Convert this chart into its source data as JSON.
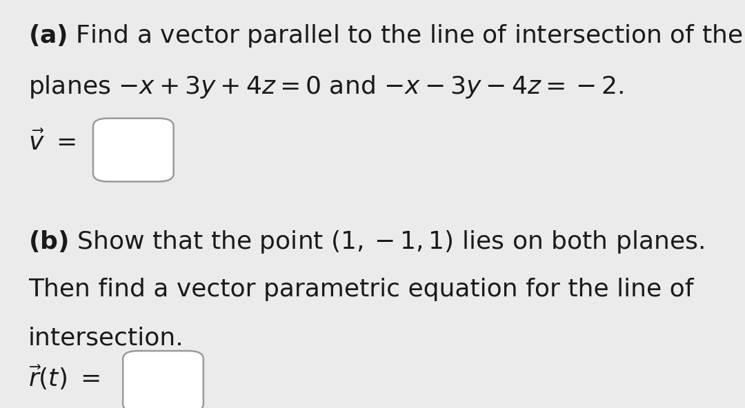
{
  "background_color": "#ebebeb",
  "text_color": "#1a1a1a",
  "fig_width": 10.8,
  "fig_height": 5.92,
  "box_color": "#ffffff",
  "box_edge_color": "#999999",
  "font_size_main": 26,
  "font_size_math": 26
}
